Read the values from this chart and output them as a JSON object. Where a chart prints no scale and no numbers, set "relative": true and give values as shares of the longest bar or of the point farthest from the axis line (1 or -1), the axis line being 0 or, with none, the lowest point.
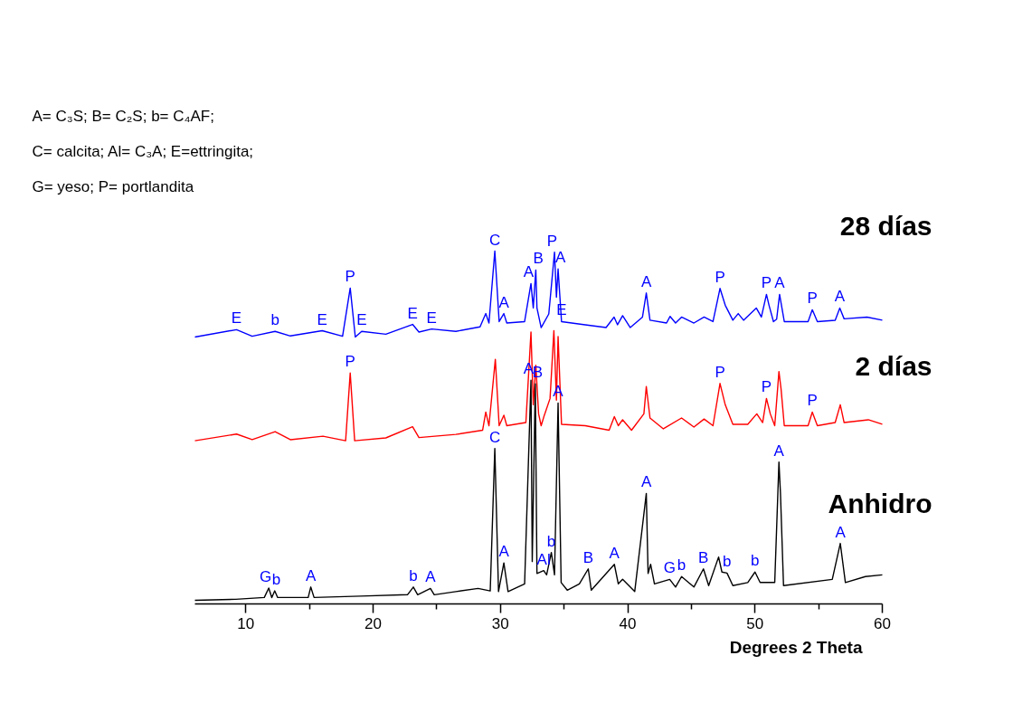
{
  "chart_data": {
    "type": "line",
    "relative": true,
    "xlabel": "Degrees 2 Theta",
    "xlim": [
      6,
      60
    ],
    "xticks": [
      10,
      {
        "value": 15,
        "label": null
      },
      20,
      {
        "value": 25,
        "label": null
      },
      30,
      {
        "value": 35,
        "label": null
      },
      40,
      {
        "value": 45,
        "label": null
      },
      50,
      {
        "value": 55,
        "label": null
      },
      60
    ],
    "grid": false,
    "marker": "none",
    "line_style": "solid",
    "series": [
      {
        "name": "28 días",
        "color": "#0000ff",
        "x": [
          6,
          9.27,
          10.5,
          12.3,
          13.5,
          16.0,
          17.6,
          18.2,
          18.6,
          19.1,
          21.0,
          23.1,
          23.6,
          24.6,
          26.5,
          28.4,
          28.85,
          29.1,
          29.56,
          29.9,
          30.27,
          30.5,
          31.9,
          32.4,
          32.58,
          32.78,
          32.87,
          33.2,
          33.8,
          34.25,
          34.4,
          34.53,
          34.8,
          36.66,
          38.3,
          38.93,
          39.2,
          39.6,
          40.2,
          41.16,
          41.46,
          41.75,
          43.05,
          43.33,
          43.76,
          44.23,
          45.2,
          46.0,
          46.7,
          47.25,
          47.66,
          48.26,
          48.68,
          49.1,
          50.1,
          50.5,
          50.9,
          51.1,
          51.45,
          51.7,
          51.93,
          52.3,
          54.17,
          54.5,
          54.9,
          56.3,
          56.66,
          57.0,
          58.8,
          60
        ],
        "values": [
          0.754,
          0.775,
          0.756,
          0.77,
          0.757,
          0.772,
          0.756,
          0.894,
          0.754,
          0.77,
          0.762,
          0.79,
          0.768,
          0.777,
          0.77,
          0.783,
          0.821,
          0.794,
          1.0,
          0.798,
          0.821,
          0.794,
          0.798,
          0.907,
          0.837,
          0.946,
          0.837,
          0.781,
          0.82,
          0.997,
          0.868,
          0.949,
          0.798,
          0.789,
          0.781,
          0.811,
          0.789,
          0.815,
          0.781,
          0.811,
          0.88,
          0.802,
          0.794,
          0.813,
          0.794,
          0.811,
          0.794,
          0.811,
          0.798,
          0.893,
          0.845,
          0.802,
          0.821,
          0.802,
          0.837,
          0.811,
          0.876,
          0.845,
          0.798,
          0.805,
          0.876,
          0.798,
          0.798,
          0.832,
          0.798,
          0.802,
          0.837,
          0.806,
          0.811,
          0.802
        ]
      },
      {
        "name": "2 días",
        "color": "#ff0000",
        "x": [
          6,
          9.27,
          10.5,
          12.3,
          13.5,
          16.06,
          17.84,
          18.2,
          18.55,
          21.0,
          23.1,
          23.6,
          26.5,
          28.6,
          28.85,
          29.1,
          29.6,
          29.9,
          30.27,
          30.5,
          32.0,
          32.4,
          32.58,
          32.78,
          33.0,
          33.2,
          33.45,
          33.9,
          34.2,
          34.4,
          34.53,
          34.8,
          36.66,
          38.54,
          38.95,
          39.26,
          39.6,
          40.3,
          41.27,
          41.46,
          41.75,
          42.8,
          44.23,
          45.2,
          46.0,
          46.7,
          47.25,
          47.66,
          48.26,
          49.43,
          50.14,
          50.6,
          50.9,
          51.2,
          51.55,
          51.88,
          52.05,
          52.3,
          54.17,
          54.5,
          54.9,
          56.3,
          56.7,
          57.0,
          58.9,
          60
        ],
        "values": [
          0.457,
          0.476,
          0.46,
          0.483,
          0.46,
          0.47,
          0.457,
          0.651,
          0.457,
          0.465,
          0.497,
          0.466,
          0.475,
          0.487,
          0.539,
          0.5,
          0.69,
          0.5,
          0.53,
          0.5,
          0.509,
          0.768,
          0.56,
          0.673,
          0.534,
          0.5,
          0.53,
          0.578,
          0.772,
          0.573,
          0.755,
          0.504,
          0.5,
          0.487,
          0.526,
          0.5,
          0.517,
          0.487,
          0.534,
          0.612,
          0.522,
          0.491,
          0.522,
          0.496,
          0.519,
          0.5,
          0.621,
          0.56,
          0.504,
          0.504,
          0.534,
          0.509,
          0.578,
          0.534,
          0.5,
          0.655,
          0.604,
          0.5,
          0.5,
          0.539,
          0.5,
          0.509,
          0.56,
          0.509,
          0.517,
          0.504
        ]
      },
      {
        "name": "Anhidro",
        "color": "#000000",
        "x": [
          6,
          9.2,
          11.45,
          11.8,
          12.04,
          12.27,
          12.5,
          14.9,
          15.1,
          15.36,
          19.0,
          22.7,
          23.16,
          23.5,
          24.5,
          24.8,
          26.5,
          28.25,
          29.2,
          29.56,
          29.85,
          30.27,
          30.6,
          31.9,
          32.4,
          32.5,
          32.74,
          32.87,
          33.4,
          33.63,
          34.0,
          34.25,
          34.53,
          34.77,
          35.25,
          36.2,
          36.9,
          37.14,
          38.95,
          39.26,
          39.6,
          40.55,
          41.46,
          41.6,
          41.8,
          42.1,
          43.3,
          43.76,
          44.23,
          45.2,
          45.95,
          46.36,
          47.14,
          47.4,
          47.8,
          48.26,
          49.43,
          50.0,
          50.4,
          51.55,
          51.88,
          52.0,
          52.24,
          56.07,
          56.7,
          57.1,
          58.67,
          60
        ],
        "values": [
          0.0,
          0.003,
          0.008,
          0.035,
          0.008,
          0.027,
          0.008,
          0.008,
          0.038,
          0.008,
          0.012,
          0.016,
          0.038,
          0.016,
          0.034,
          0.016,
          0.025,
          0.034,
          0.027,
          0.435,
          0.025,
          0.107,
          0.025,
          0.047,
          0.63,
          0.111,
          0.62,
          0.077,
          0.085,
          0.073,
          0.137,
          0.073,
          0.565,
          0.051,
          0.029,
          0.047,
          0.09,
          0.029,
          0.103,
          0.047,
          0.06,
          0.025,
          0.306,
          0.077,
          0.103,
          0.047,
          0.06,
          0.038,
          0.068,
          0.038,
          0.09,
          0.042,
          0.124,
          0.081,
          0.078,
          0.042,
          0.051,
          0.081,
          0.051,
          0.051,
          0.396,
          0.306,
          0.042,
          0.06,
          0.163,
          0.051,
          0.068,
          0.073
        ]
      }
    ],
    "annotations": [
      "A= C₃S; B= C₂S; b= C₄AF;",
      "C= calcita; Al= C₃A; E=ettringita;",
      "G= yeso; P= portlandita",
      {
        "text": "E",
        "x": 9.27,
        "y": 0.775
      },
      {
        "text": "b",
        "x": 12.3,
        "y": 0.77
      },
      {
        "text": "E",
        "x": 16.0,
        "y": 0.772
      },
      {
        "text": "P",
        "x": 18.2,
        "y": 0.894
      },
      {
        "text": "E",
        "x": 19.1,
        "y": 0.77
      },
      {
        "text": "E",
        "x": 23.1,
        "y": 0.79
      },
      {
        "text": "E",
        "x": 24.6,
        "y": 0.777
      },
      {
        "text": "C",
        "x": 29.56,
        "y": 1.0
      },
      {
        "text": "A",
        "x": 30.27,
        "y": 0.821
      },
      {
        "text": "A",
        "x": 32.4,
        "y": 0.907
      },
      {
        "text": "B",
        "x": 32.78,
        "y": 0.946
      },
      {
        "text": "P",
        "x": 34.25,
        "y": 0.997
      },
      {
        "text": "A",
        "x": 34.53,
        "y": 0.949
      },
      {
        "text": "E",
        "x": 34.8,
        "y": 0.798
      },
      {
        "text": "A",
        "x": 41.46,
        "y": 0.88
      },
      {
        "text": "P",
        "x": 47.25,
        "y": 0.893
      },
      {
        "text": "P",
        "x": 50.9,
        "y": 0.876
      },
      {
        "text": "A",
        "x": 51.93,
        "y": 0.876
      },
      {
        "text": "P",
        "x": 54.5,
        "y": 0.832
      },
      {
        "text": "A",
        "x": 56.66,
        "y": 0.837
      },
      {
        "text": "P",
        "x": 18.2,
        "y": 0.651
      },
      {
        "text": "P",
        "x": 47.25,
        "y": 0.621
      },
      {
        "text": "P",
        "x": 50.9,
        "y": 0.578
      },
      {
        "text": "P",
        "x": 54.5,
        "y": 0.539
      },
      {
        "text": "G",
        "x": 11.8,
        "y": 0.035
      },
      {
        "text": "b",
        "x": 12.27,
        "y": 0.027
      },
      {
        "text": "A",
        "x": 15.1,
        "y": 0.038
      },
      {
        "text": "b",
        "x": 23.16,
        "y": 0.038
      },
      {
        "text": "A",
        "x": 24.5,
        "y": 0.034
      },
      {
        "text": "C",
        "x": 29.56,
        "y": 0.435
      },
      {
        "text": "A",
        "x": 30.27,
        "y": 0.107
      },
      {
        "text": "A",
        "x": 32.4,
        "y": 0.63
      },
      {
        "text": "B",
        "x": 32.74,
        "y": 0.62
      },
      {
        "text": "A",
        "x": 34.53,
        "y": 0.565
      },
      {
        "text": "Al",
        "x": 33.4,
        "y": 0.085
      },
      {
        "text": "b",
        "x": 34.0,
        "y": 0.137
      },
      {
        "text": "B",
        "x": 36.9,
        "y": 0.09
      },
      {
        "text": "A",
        "x": 38.95,
        "y": 0.103
      },
      {
        "text": "A",
        "x": 41.46,
        "y": 0.306
      },
      {
        "text": "G",
        "x": 43.3,
        "y": 0.06
      },
      {
        "text": "b",
        "x": 44.23,
        "y": 0.068
      },
      {
        "text": "B",
        "x": 45.95,
        "y": 0.09
      },
      {
        "text": "b",
        "x": 47.8,
        "y": 0.078
      },
      {
        "text": "b",
        "x": 50.0,
        "y": 0.081
      },
      {
        "text": "A",
        "x": 51.88,
        "y": 0.396
      },
      {
        "text": "A",
        "x": 56.7,
        "y": 0.163
      }
    ]
  }
}
